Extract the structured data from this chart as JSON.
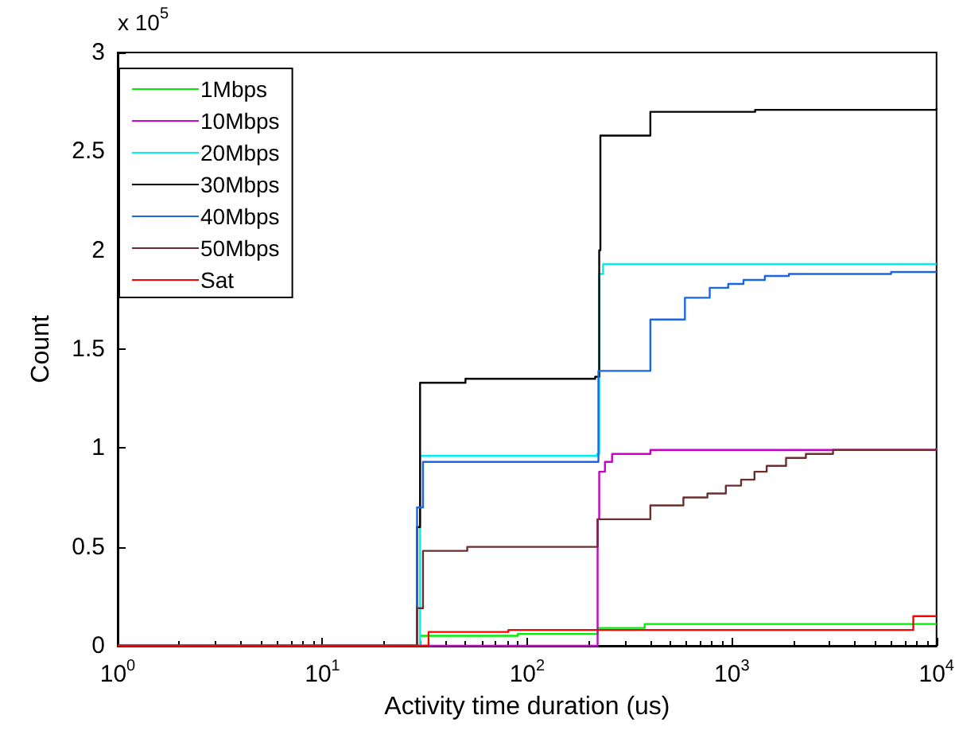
{
  "chart_data": {
    "type": "step",
    "xlabel": "Activity time duration (us)",
    "ylabel": "Count",
    "annotations": [
      "x 10$^{5}$"
    ],
    "log": "x",
    "xlim": [
      1,
      10000
    ],
    "xticks": [
      {
        "value": 1,
        "label": "10$^{0}$"
      },
      {
        "value": 10,
        "label": "10$^{1}$"
      },
      {
        "value": 100,
        "label": "10$^{2}$"
      },
      {
        "value": 1000,
        "label": "10$^{3}$"
      },
      {
        "value": 10000,
        "label": "10$^{4}$"
      }
    ],
    "ylim": [
      0,
      3
    ],
    "yticks": [
      0,
      0.5,
      1,
      1.5,
      2,
      2.5,
      3
    ],
    "grid": false,
    "legend": "top left",
    "marker": "none",
    "line_style": "solid",
    "series": [
      {
        "name": "1Mbps",
        "color": "#00ee00",
        "x": [
          1,
          27,
          30,
          90,
          221,
          375,
          10000
        ],
        "values": [
          0,
          0,
          0.05,
          0.06,
          0.09,
          0.11,
          0.11
        ]
      },
      {
        "name": "10Mbps",
        "color": "#cc00cc",
        "x": [
          1,
          215,
          221,
          225,
          240,
          260,
          400,
          10000
        ],
        "values": [
          0,
          0,
          0.64,
          0.88,
          0.93,
          0.97,
          0.99,
          1.0
        ]
      },
      {
        "name": "20Mbps",
        "color": "#00eeee",
        "x": [
          1,
          27,
          30,
          220,
          225,
          235,
          10000
        ],
        "values": [
          0,
          0,
          0.96,
          0.97,
          1.88,
          1.93,
          1.93
        ]
      },
      {
        "name": "30Mbps",
        "color": "#000000",
        "x": [
          1,
          27,
          29,
          30,
          50,
          215,
          225,
          228,
          400,
          1300,
          10000
        ],
        "values": [
          0,
          0,
          0.6,
          1.33,
          1.35,
          1.36,
          2.0,
          2.58,
          2.7,
          2.71,
          2.72
        ]
      },
      {
        "name": "40Mbps",
        "color": "#1a66e6",
        "x": [
          1,
          27,
          29,
          31,
          220,
          223,
          400,
          590,
          780,
          960,
          1140,
          1450,
          1900,
          6000,
          10000
        ],
        "values": [
          0,
          0,
          0.7,
          0.93,
          0.93,
          1.39,
          1.65,
          1.76,
          1.81,
          1.83,
          1.85,
          1.87,
          1.88,
          1.89,
          1.89
        ]
      },
      {
        "name": "50Mbps",
        "color": "#6b2f2f",
        "x": [
          1,
          27,
          29,
          31,
          51,
          221,
          400,
          580,
          760,
          935,
          1110,
          1290,
          1480,
          1840,
          2300,
          3120,
          10000
        ],
        "values": [
          0,
          0,
          0.19,
          0.48,
          0.5,
          0.64,
          0.71,
          0.75,
          0.77,
          0.81,
          0.84,
          0.88,
          0.91,
          0.95,
          0.97,
          0.99,
          1.0
        ]
      },
      {
        "name": "Sat",
        "color": "#ff0000",
        "x": [
          1,
          31,
          33,
          81,
          7700,
          10000
        ],
        "values": [
          0,
          0,
          0.07,
          0.08,
          0.15,
          0.15
        ]
      }
    ]
  }
}
